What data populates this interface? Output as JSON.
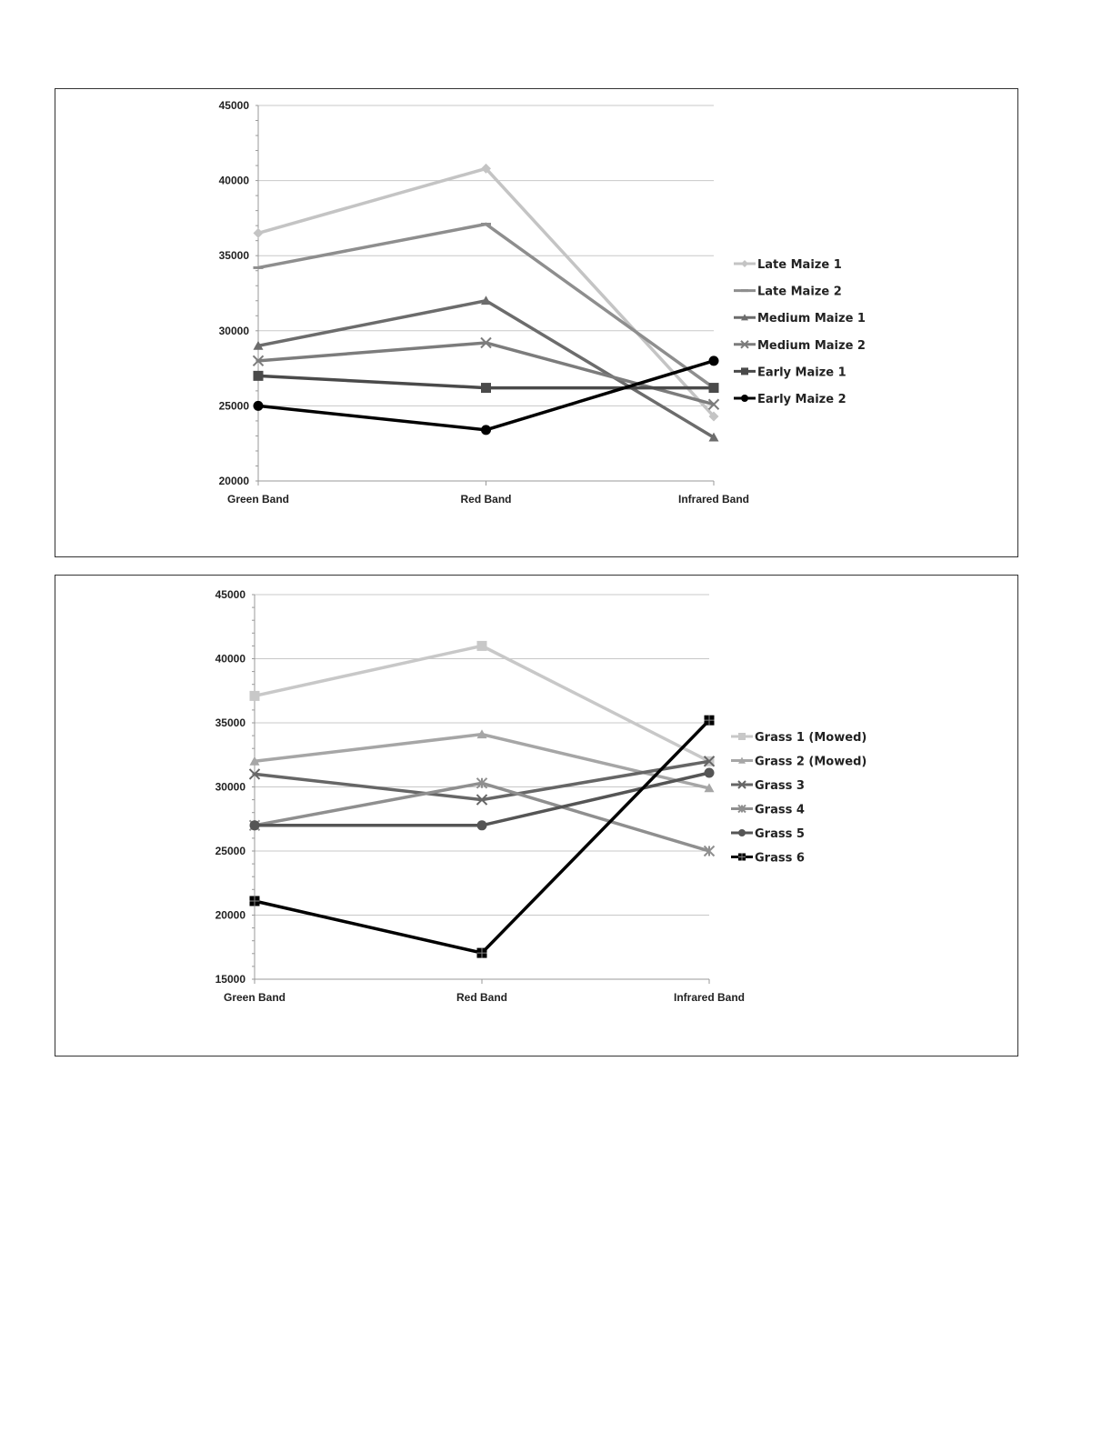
{
  "chart_data": [
    {
      "type": "line",
      "categories": [
        "Green Band",
        "Red Band",
        "Infrared Band"
      ],
      "ylim": [
        20000,
        45000
      ],
      "yticks": [
        20000,
        25000,
        30000,
        35000,
        40000,
        45000
      ],
      "grid": true,
      "legend": "right",
      "series": [
        {
          "name": "Late Maize 1",
          "values": [
            36500,
            40800,
            24300
          ],
          "color": "#c4c4c4",
          "marker": "diamond"
        },
        {
          "name": "Late Maize 2",
          "values": [
            34200,
            37100,
            26200
          ],
          "color": "#8e8e8e",
          "marker": "dash"
        },
        {
          "name": "Medium Maize 1",
          "values": [
            29000,
            32000,
            22900
          ],
          "color": "#6c6c6c",
          "marker": "triangle"
        },
        {
          "name": "Medium Maize 2",
          "values": [
            28000,
            29200,
            25100
          ],
          "color": "#7c7c7c",
          "marker": "x"
        },
        {
          "name": "Early Maize 1",
          "values": [
            27000,
            26200,
            26200
          ],
          "color": "#4a4a4a",
          "marker": "square"
        },
        {
          "name": "Early Maize 2",
          "values": [
            25000,
            23400,
            28000
          ],
          "color": "#000000",
          "marker": "circle"
        }
      ]
    },
    {
      "type": "line",
      "categories": [
        "Green Band",
        "Red Band",
        "Infrared Band"
      ],
      "ylim": [
        15000,
        45000
      ],
      "yticks": [
        15000,
        20000,
        25000,
        30000,
        35000,
        40000,
        45000
      ],
      "grid": true,
      "legend": "right",
      "series": [
        {
          "name": "Grass 1  (Mowed)",
          "values": [
            37100,
            41000,
            32000
          ],
          "color": "#c8c8c8",
          "marker": "square"
        },
        {
          "name": "Grass 2 (Mowed)",
          "values": [
            32000,
            34100,
            29900
          ],
          "color": "#a6a6a6",
          "marker": "triangle"
        },
        {
          "name": "Grass 3",
          "values": [
            31000,
            29000,
            32000
          ],
          "color": "#666666",
          "marker": "x"
        },
        {
          "name": "Grass 4",
          "values": [
            27000,
            30300,
            25000
          ],
          "color": "#8f8f8f",
          "marker": "star"
        },
        {
          "name": "Grass 5",
          "values": [
            27000,
            27000,
            31100
          ],
          "color": "#555555",
          "marker": "circle"
        },
        {
          "name": "Grass 6",
          "values": [
            21100,
            17050,
            35200
          ],
          "color": "#000000",
          "marker": "plus-square"
        }
      ]
    }
  ]
}
